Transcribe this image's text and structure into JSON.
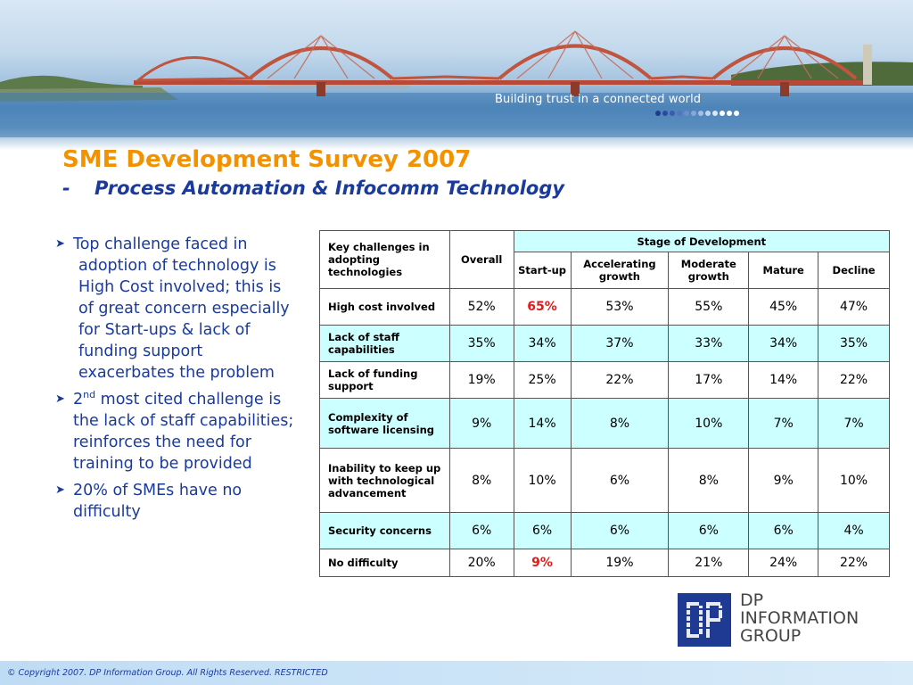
{
  "header": {
    "tagline": "Building trust in a connected world",
    "dot_colors": [
      "#1f3a93",
      "#2a4aa3",
      "#3b5bb0",
      "#5574be",
      "#6f8dcb",
      "#8aa6d7",
      "#a6bfe2",
      "#c2d6ec",
      "#dbe8f4",
      "#ffffff",
      "#ffffff",
      "#ffffff"
    ]
  },
  "title": "SME Development Survey 2007",
  "subtitle": {
    "dash": "-",
    "text": "Process Automation & Infocomm Technology"
  },
  "bullets": {
    "b1": "Top challenge faced in adoption of technology is High Cost involved; this is of great concern especially for Start-ups & lack of funding support exacerbates the problem",
    "b2_pre": "2",
    "b2_sup": "nd",
    "b2_post": " most cited challenge is the lack of staff capabilities; reinforces the need for training to be provided",
    "b3": "20% of SMEs have no difficulty"
  },
  "table": {
    "col_challenge": "Key challenges in adopting technologies",
    "col_overall": "Overall",
    "col_stage_group": "Stage of Development",
    "stages": [
      "Start-up",
      "Accelerating growth",
      "Moderate growth",
      "Mature",
      "Decline"
    ],
    "rows": [
      {
        "label": "High cost involved",
        "values": [
          "52%",
          "65%",
          "53%",
          "55%",
          "45%",
          "47%"
        ]
      },
      {
        "label": "Lack of staff capabilities",
        "values": [
          "35%",
          "34%",
          "37%",
          "33%",
          "34%",
          "35%"
        ]
      },
      {
        "label": "Lack of funding support",
        "values": [
          "19%",
          "25%",
          "22%",
          "17%",
          "14%",
          "22%"
        ]
      },
      {
        "label": "Complexity of software licensing",
        "values": [
          "9%",
          "14%",
          "8%",
          "10%",
          "7%",
          "7%"
        ]
      },
      {
        "label": "Inability to keep up with technological advancement",
        "values": [
          "8%",
          "10%",
          "6%",
          "8%",
          "9%",
          "10%"
        ]
      },
      {
        "label": "Security concerns",
        "values": [
          "6%",
          "6%",
          "6%",
          "6%",
          "6%",
          "4%"
        ]
      },
      {
        "label": "No difficulty",
        "values": [
          "20%",
          "9%",
          "19%",
          "21%",
          "24%",
          "22%"
        ]
      }
    ],
    "highlight_color": "#e01b1b",
    "alt_row_color": "#ccffff"
  },
  "logo": {
    "mark_text": "DP",
    "line1": "DP",
    "line2": "INFORMATION",
    "line3": "GROUP"
  },
  "footer": {
    "copyright": "© Copyright 2007. DP Information Group. All Rights Reserved. RESTRICTED"
  }
}
